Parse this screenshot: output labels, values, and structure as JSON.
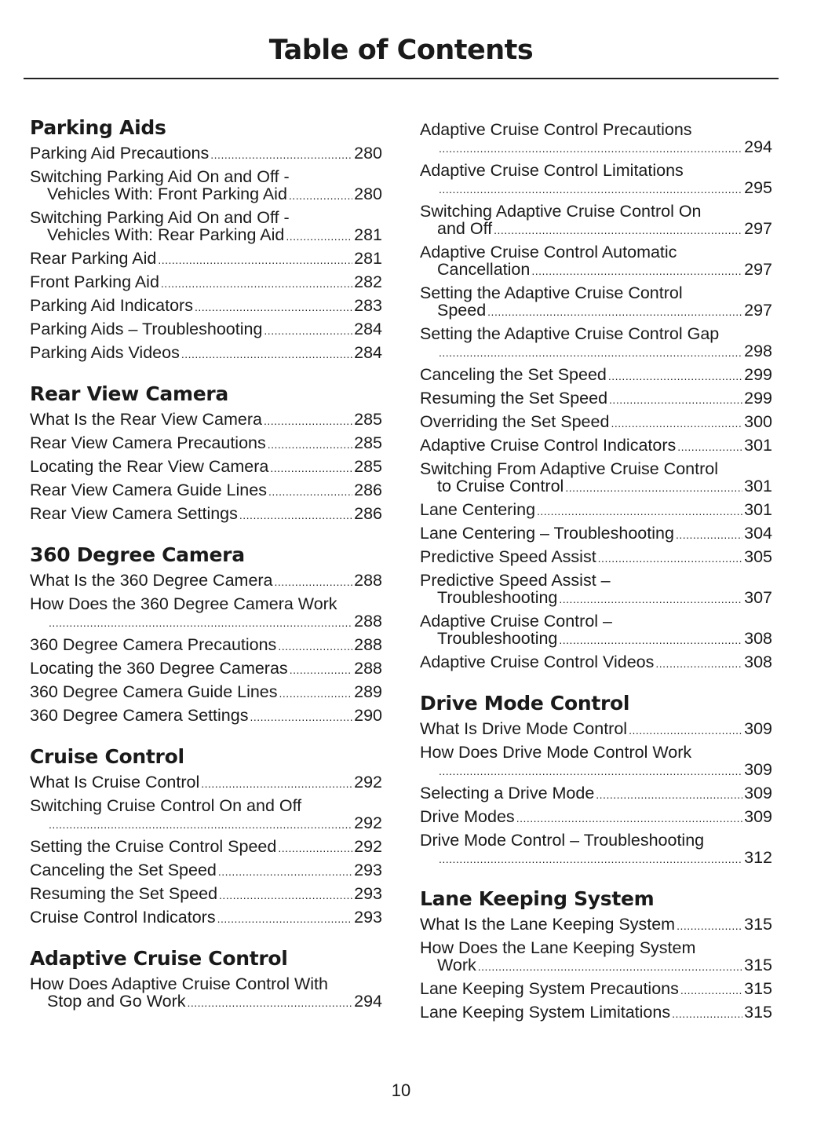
{
  "title": "Table of Contents",
  "page_number": "10",
  "columns": [
    [
      {
        "heading": "Parking Aids",
        "entries": [
          {
            "text": "Parking Aid Precautions",
            "page": "280"
          },
          {
            "text": "Switching Parking Aid On and Off -",
            "cont": "Vehicles With: Front Parking Aid",
            "page": "280"
          },
          {
            "text": "Switching Parking Aid On and Off -",
            "cont": "Vehicles With: Rear Parking Aid",
            "page": "281"
          },
          {
            "text": "Rear Parking Aid",
            "page": "281"
          },
          {
            "text": "Front Parking Aid",
            "page": "282"
          },
          {
            "text": "Parking Aid Indicators",
            "page": "283"
          },
          {
            "text": "Parking Aids – Troubleshooting",
            "page": "284"
          },
          {
            "text": "Parking Aids Videos",
            "page": "284"
          }
        ]
      },
      {
        "heading": "Rear View Camera",
        "entries": [
          {
            "text": "What Is the Rear View Camera",
            "page": "285"
          },
          {
            "text": "Rear View Camera Precautions",
            "page": "285"
          },
          {
            "text": "Locating the Rear View Camera",
            "page": "285"
          },
          {
            "text": "Rear View Camera Guide Lines",
            "page": "286"
          },
          {
            "text": "Rear View Camera Settings",
            "page": "286"
          }
        ]
      },
      {
        "heading": "360 Degree Camera",
        "entries": [
          {
            "text": "What Is the 360 Degree Camera",
            "page": "288"
          },
          {
            "text": "How Does the 360 Degree Camera Work",
            "cont": "",
            "page": "288"
          },
          {
            "text": "360 Degree Camera Precautions",
            "page": "288"
          },
          {
            "text": "Locating the 360 Degree Cameras",
            "page": "288"
          },
          {
            "text": "360 Degree Camera Guide Lines",
            "page": "289"
          },
          {
            "text": "360 Degree Camera Settings",
            "page": "290"
          }
        ]
      },
      {
        "heading": "Cruise Control",
        "entries": [
          {
            "text": "What Is Cruise Control",
            "page": "292"
          },
          {
            "text": "Switching Cruise Control On and Off",
            "cont": "",
            "page": "292"
          },
          {
            "text": "Setting the Cruise Control Speed",
            "page": "292"
          },
          {
            "text": "Canceling the Set Speed",
            "page": "293"
          },
          {
            "text": "Resuming the Set Speed",
            "page": "293"
          },
          {
            "text": "Cruise Control Indicators",
            "page": "293"
          }
        ]
      },
      {
        "heading": "Adaptive Cruise Control",
        "entries": [
          {
            "text": "How Does Adaptive Cruise Control With",
            "cont": "Stop and Go Work",
            "page": "294"
          }
        ]
      }
    ],
    [
      {
        "heading": "",
        "entries": [
          {
            "text": "Adaptive Cruise Control Precautions",
            "cont": "",
            "page": "294"
          },
          {
            "text": "Adaptive Cruise Control Limitations",
            "cont": "",
            "page": "295"
          },
          {
            "text": "Switching Adaptive Cruise Control On",
            "cont": "and Off",
            "page": "297"
          },
          {
            "text": "Adaptive Cruise Control Automatic",
            "cont": "Cancellation",
            "page": "297"
          },
          {
            "text": "Setting the Adaptive Cruise Control",
            "cont": "Speed",
            "page": "297"
          },
          {
            "text": "Setting the Adaptive Cruise Control Gap",
            "cont": "",
            "page": "298"
          },
          {
            "text": "Canceling the Set Speed",
            "page": "299"
          },
          {
            "text": "Resuming the Set Speed",
            "page": "299"
          },
          {
            "text": "Overriding the Set Speed",
            "page": "300"
          },
          {
            "text": "Adaptive Cruise Control Indicators",
            "page": "301"
          },
          {
            "text": "Switching From Adaptive Cruise Control",
            "cont": "to Cruise Control",
            "page": "301"
          },
          {
            "text": "Lane Centering",
            "page": "301"
          },
          {
            "text": "Lane Centering – Troubleshooting",
            "page": "304"
          },
          {
            "text": "Predictive Speed Assist",
            "page": "305"
          },
          {
            "text": "Predictive Speed Assist –",
            "cont": "Troubleshooting",
            "page": "307"
          },
          {
            "text": "Adaptive Cruise Control –",
            "cont": "Troubleshooting",
            "page": "308"
          },
          {
            "text": "Adaptive Cruise Control Videos",
            "page": "308"
          }
        ]
      },
      {
        "heading": "Drive Mode Control",
        "entries": [
          {
            "text": "What Is Drive Mode Control",
            "page": "309"
          },
          {
            "text": "How Does Drive Mode Control Work",
            "cont": "",
            "page": "309"
          },
          {
            "text": "Selecting a Drive Mode",
            "page": "309"
          },
          {
            "text": "Drive Modes",
            "page": "309"
          },
          {
            "text": "Drive Mode Control – Troubleshooting",
            "cont": "",
            "page": "312"
          }
        ]
      },
      {
        "heading": "Lane Keeping System",
        "entries": [
          {
            "text": "What Is the Lane Keeping System",
            "page": "315"
          },
          {
            "text": "How Does the Lane Keeping System",
            "cont": "Work",
            "page": "315"
          },
          {
            "text": "Lane Keeping System Precautions",
            "page": "315"
          },
          {
            "text": "Lane Keeping System Limitations",
            "page": "315"
          }
        ]
      }
    ]
  ]
}
